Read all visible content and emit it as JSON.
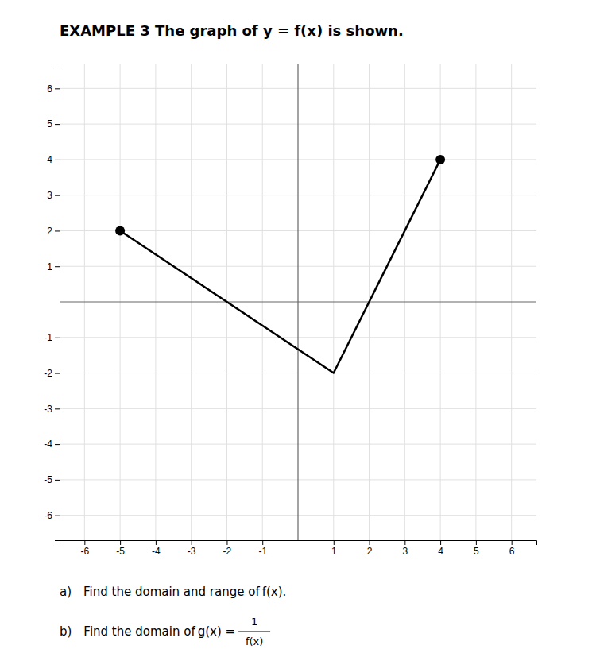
{
  "chart_data": {
    "type": "line",
    "title": "EXAMPLE 3 The graph of y = f(x) is shown.",
    "x": [
      -5,
      1,
      4
    ],
    "values": [
      2,
      -2,
      4
    ],
    "color": "#000000",
    "marker": "endpoints",
    "xlim": [
      -6.7,
      6.7
    ],
    "ylim": [
      -6.7,
      6.7
    ],
    "xticks": [
      -6,
      -5,
      -4,
      -3,
      -2,
      -1,
      1,
      2,
      3,
      4,
      5,
      6
    ],
    "yticks": [
      -6,
      -5,
      -4,
      -3,
      -2,
      -1,
      1,
      2,
      3,
      4,
      5,
      6
    ],
    "grid": true,
    "annotations": [
      {
        "text": "a) Find the domain and range of f(x)."
      },
      {
        "text": "b) Find the domain of g(x) = ",
        "fraction": {
          "numerator": "1",
          "denominator": "f(x)"
        }
      }
    ]
  }
}
